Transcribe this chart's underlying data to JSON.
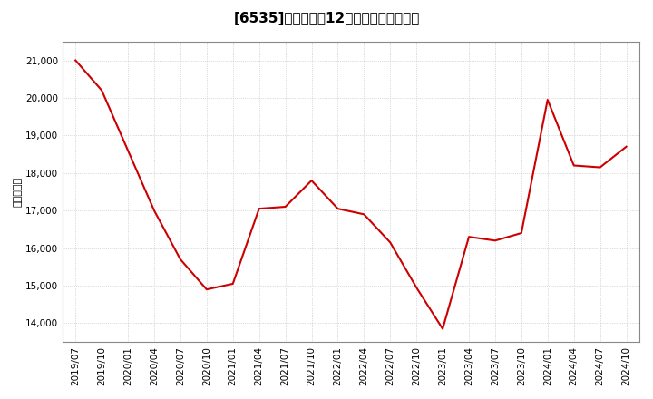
{
  "title": "[6535]　売上高の12か月移動合計の推移",
  "ylabel": "（百万円）",
  "line_color": "#cc0000",
  "background_color": "#ffffff",
  "plot_bg_color": "#ffffff",
  "grid_color": "#bbbbbb",
  "x_labels": [
    "2019/07",
    "2019/10",
    "2020/01",
    "2020/04",
    "2020/07",
    "2020/10",
    "2021/01",
    "2021/04",
    "2021/07",
    "2021/10",
    "2022/01",
    "2022/04",
    "2022/07",
    "2022/10",
    "2023/01",
    "2023/04",
    "2023/07",
    "2023/10",
    "2024/01",
    "2024/04",
    "2024/07",
    "2024/10"
  ],
  "y_data": [
    21000,
    20200,
    18600,
    17000,
    15700,
    14900,
    15050,
    17050,
    17100,
    17800,
    17050,
    16900,
    16150,
    14950,
    13850,
    16300,
    16200,
    16400,
    19950,
    18200,
    18150,
    18700
  ],
  "ylim_min": 13500,
  "ylim_max": 21500,
  "yticks": [
    14000,
    15000,
    16000,
    17000,
    18000,
    19000,
    20000,
    21000
  ],
  "title_fontsize": 11,
  "axis_fontsize": 7.5,
  "ylabel_fontsize": 8
}
